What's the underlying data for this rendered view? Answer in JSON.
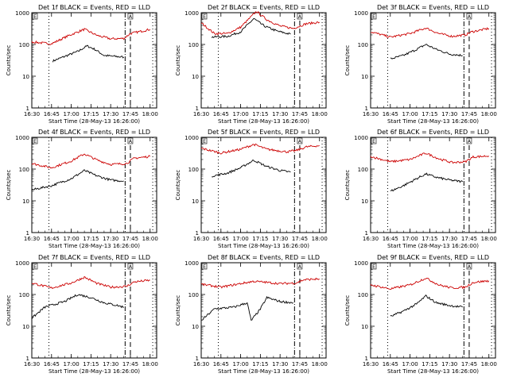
{
  "figure": {
    "xlabel": "Start Time (28-May-13 16:26:00)",
    "ylabel": "Counts/sec",
    "xticks": [
      "16:30",
      "16:45",
      "17:00",
      "17:15",
      "17:30",
      "17:45",
      "18:00"
    ],
    "yticks": [
      "1",
      "10",
      "100",
      "1000"
    ],
    "marker_labels": [
      "E",
      "A"
    ]
  },
  "chart_data": [
    {
      "type": "line",
      "title": "Det 1f BLACK = Events, RED = LLD",
      "ylog": true,
      "ylim": [
        1,
        1000
      ],
      "xlim": [
        "16:30",
        "18:05"
      ],
      "series": [
        {
          "name": "BLACK = Events",
          "color": "#000000",
          "points": [
            [
              "16:46",
              30
            ],
            [
              "16:55",
              42
            ],
            [
              "17:05",
              60
            ],
            [
              "17:12",
              90
            ],
            [
              "17:18",
              70
            ],
            [
              "17:25",
              45
            ],
            [
              "17:33",
              42
            ],
            [
              "17:40",
              40
            ]
          ]
        },
        {
          "name": "RED = LLD",
          "color": "#cc0000",
          "points": [
            [
              "16:30",
              120
            ],
            [
              "16:45",
              105
            ],
            [
              "16:58",
              190
            ],
            [
              "17:10",
              300
            ],
            [
              "17:20",
              190
            ],
            [
              "17:30",
              150
            ],
            [
              "17:40",
              155
            ],
            [
              "17:45",
              220
            ],
            [
              "18:00",
              300
            ]
          ]
        }
      ]
    },
    {
      "type": "line",
      "title": "Det 2f BLACK = Events, RED = LLD",
      "ylog": true,
      "ylim": [
        1,
        1000
      ],
      "xlim": [
        "16:30",
        "18:05"
      ],
      "series": [
        {
          "name": "BLACK = Events",
          "color": "#000000",
          "points": [
            [
              "16:38",
              170
            ],
            [
              "16:50",
              180
            ],
            [
              "17:00",
              250
            ],
            [
              "17:10",
              650
            ],
            [
              "17:18",
              380
            ],
            [
              "17:28",
              260
            ],
            [
              "17:38",
              210
            ]
          ]
        },
        {
          "name": "RED = LLD",
          "color": "#cc0000",
          "points": [
            [
              "16:30",
              480
            ],
            [
              "16:40",
              220
            ],
            [
              "16:50",
              220
            ],
            [
              "17:00",
              350
            ],
            [
              "17:12",
              1100
            ],
            [
              "17:20",
              600
            ],
            [
              "17:30",
              380
            ],
            [
              "17:40",
              320
            ],
            [
              "17:50",
              450
            ],
            [
              "18:00",
              500
            ]
          ]
        }
      ]
    },
    {
      "type": "line",
      "title": "Det 3f BLACK = Events, RED = LLD",
      "ylog": true,
      "ylim": [
        1,
        1000
      ],
      "xlim": [
        "16:30",
        "18:05"
      ],
      "series": [
        {
          "name": "BLACK = Events",
          "color": "#000000",
          "points": [
            [
              "16:45",
              35
            ],
            [
              "16:55",
              45
            ],
            [
              "17:05",
              70
            ],
            [
              "17:12",
              100
            ],
            [
              "17:20",
              70
            ],
            [
              "17:30",
              50
            ],
            [
              "17:40",
              45
            ]
          ]
        },
        {
          "name": "RED = LLD",
          "color": "#cc0000",
          "points": [
            [
              "16:30",
              250
            ],
            [
              "16:45",
              170
            ],
            [
              "17:00",
              220
            ],
            [
              "17:12",
              330
            ],
            [
              "17:22",
              220
            ],
            [
              "17:32",
              180
            ],
            [
              "17:42",
              200
            ],
            [
              "17:47",
              250
            ],
            [
              "18:00",
              320
            ]
          ]
        }
      ]
    },
    {
      "type": "line",
      "title": "Det 4f BLACK = Events, RED = LLD",
      "ylog": true,
      "ylim": [
        1,
        1000
      ],
      "xlim": [
        "16:30",
        "18:05"
      ],
      "series": [
        {
          "name": "BLACK = Events",
          "color": "#000000",
          "points": [
            [
              "16:30",
              22
            ],
            [
              "16:45",
              30
            ],
            [
              "17:00",
              50
            ],
            [
              "17:10",
              90
            ],
            [
              "17:20",
              60
            ],
            [
              "17:30",
              45
            ],
            [
              "17:40",
              42
            ]
          ]
        },
        {
          "name": "RED = LLD",
          "color": "#cc0000",
          "points": [
            [
              "16:30",
              150
            ],
            [
              "16:45",
              110
            ],
            [
              "17:00",
              180
            ],
            [
              "17:10",
              300
            ],
            [
              "17:20",
              190
            ],
            [
              "17:30",
              140
            ],
            [
              "17:42",
              150
            ],
            [
              "17:48",
              220
            ],
            [
              "18:00",
              250
            ]
          ]
        }
      ]
    },
    {
      "type": "line",
      "title": "Det 5f BLACK = Events, RED = LLD",
      "ylog": true,
      "ylim": [
        1,
        1000
      ],
      "xlim": [
        "16:30",
        "18:05"
      ],
      "series": [
        {
          "name": "BLACK = Events",
          "color": "#000000",
          "points": [
            [
              "16:38",
              60
            ],
            [
              "16:50",
              75
            ],
            [
              "17:00",
              110
            ],
            [
              "17:10",
              190
            ],
            [
              "17:20",
              120
            ],
            [
              "17:30",
              90
            ],
            [
              "17:38",
              80
            ]
          ]
        },
        {
          "name": "RED = LLD",
          "color": "#cc0000",
          "points": [
            [
              "16:30",
              450
            ],
            [
              "16:45",
              320
            ],
            [
              "17:00",
              420
            ],
            [
              "17:10",
              600
            ],
            [
              "17:20",
              420
            ],
            [
              "17:35",
              350
            ],
            [
              "17:42",
              380
            ],
            [
              "17:50",
              500
            ],
            [
              "18:00",
              550
            ]
          ]
        }
      ]
    },
    {
      "type": "line",
      "title": "Det 6f BLACK = Events, RED = LLD",
      "ylog": true,
      "ylim": [
        1,
        1000
      ],
      "xlim": [
        "16:30",
        "18:05"
      ],
      "series": [
        {
          "name": "BLACK = Events",
          "color": "#000000",
          "points": [
            [
              "16:45",
              20
            ],
            [
              "16:55",
              30
            ],
            [
              "17:05",
              50
            ],
            [
              "17:12",
              70
            ],
            [
              "17:20",
              55
            ],
            [
              "17:30",
              45
            ],
            [
              "17:40",
              40
            ]
          ]
        },
        {
          "name": "RED = LLD",
          "color": "#cc0000",
          "points": [
            [
              "16:30",
              250
            ],
            [
              "16:45",
              170
            ],
            [
              "17:00",
              200
            ],
            [
              "17:12",
              320
            ],
            [
              "17:22",
              210
            ],
            [
              "17:32",
              160
            ],
            [
              "17:42",
              170
            ],
            [
              "17:48",
              240
            ],
            [
              "18:00",
              260
            ]
          ]
        }
      ]
    },
    {
      "type": "line",
      "title": "Det 7f BLACK = Events, RED = LLD",
      "ylog": true,
      "ylim": [
        1,
        1000
      ],
      "xlim": [
        "16:30",
        "18:05"
      ],
      "series": [
        {
          "name": "BLACK = Events",
          "color": "#000000",
          "points": [
            [
              "16:30",
              18
            ],
            [
              "16:40",
              40
            ],
            [
              "16:55",
              60
            ],
            [
              "17:05",
              100
            ],
            [
              "17:15",
              80
            ],
            [
              "17:25",
              55
            ],
            [
              "17:35",
              45
            ],
            [
              "17:40",
              40
            ]
          ]
        },
        {
          "name": "RED = LLD",
          "color": "#cc0000",
          "points": [
            [
              "16:30",
              230
            ],
            [
              "16:45",
              160
            ],
            [
              "17:00",
              230
            ],
            [
              "17:10",
              350
            ],
            [
              "17:20",
              220
            ],
            [
              "17:30",
              170
            ],
            [
              "17:42",
              180
            ],
            [
              "17:48",
              250
            ],
            [
              "18:00",
              280
            ]
          ]
        }
      ]
    },
    {
      "type": "line",
      "title": "Det 8f BLACK = Events, RED = LLD",
      "ylog": true,
      "ylim": [
        1,
        1000
      ],
      "xlim": [
        "16:30",
        "18:05"
      ],
      "series": [
        {
          "name": "BLACK = Events",
          "color": "#000000",
          "points": [
            [
              "16:30",
              15
            ],
            [
              "16:40",
              35
            ],
            [
              "16:55",
              40
            ],
            [
              "17:05",
              55
            ],
            [
              "17:08",
              15
            ],
            [
              "17:15",
              35
            ],
            [
              "17:20",
              80
            ],
            [
              "17:30",
              60
            ],
            [
              "17:40",
              55
            ]
          ]
        },
        {
          "name": "RED = LLD",
          "color": "#cc0000",
          "points": [
            [
              "16:30",
              210
            ],
            [
              "16:45",
              170
            ],
            [
              "17:00",
              220
            ],
            [
              "17:10",
              260
            ],
            [
              "17:20",
              240
            ],
            [
              "17:30",
              220
            ],
            [
              "17:42",
              230
            ],
            [
              "17:48",
              290
            ],
            [
              "18:00",
              310
            ]
          ]
        }
      ]
    },
    {
      "type": "line",
      "title": "Det 9f BLACK = Events, RED = LLD",
      "ylog": true,
      "ylim": [
        1,
        1000
      ],
      "xlim": [
        "16:30",
        "18:05"
      ],
      "series": [
        {
          "name": "BLACK = Events",
          "color": "#000000",
          "points": [
            [
              "16:45",
              20
            ],
            [
              "16:55",
              30
            ],
            [
              "17:05",
              50
            ],
            [
              "17:12",
              90
            ],
            [
              "17:20",
              55
            ],
            [
              "17:30",
              45
            ],
            [
              "17:40",
              40
            ]
          ]
        },
        {
          "name": "RED = LLD",
          "color": "#cc0000",
          "points": [
            [
              "16:30",
              200
            ],
            [
              "16:45",
              150
            ],
            [
              "17:00",
              200
            ],
            [
              "17:12",
              330
            ],
            [
              "17:22",
              200
            ],
            [
              "17:32",
              160
            ],
            [
              "17:42",
              170
            ],
            [
              "17:48",
              240
            ],
            [
              "18:00",
              270
            ]
          ]
        }
      ]
    }
  ]
}
